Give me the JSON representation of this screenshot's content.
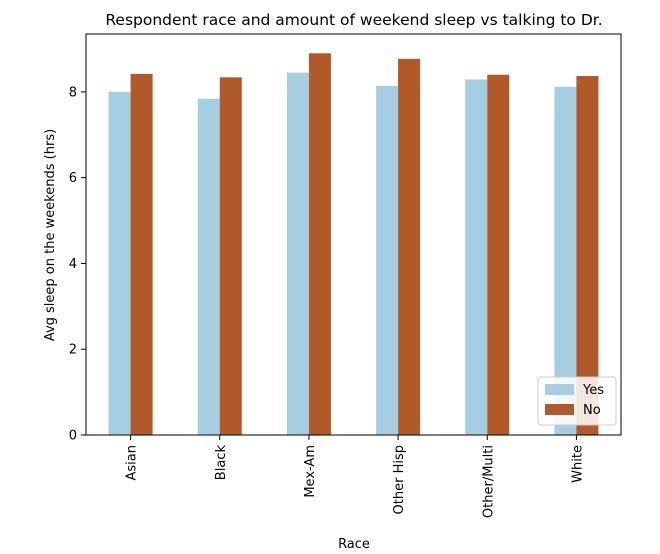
{
  "chart_data": {
    "type": "bar",
    "title": "Respondent race and amount of weekend sleep vs talking to Dr.",
    "xlabel": "Race",
    "ylabel": "Avg sleep on the weekends (hrs)",
    "categories": [
      "Asian",
      "Black",
      "Mex-Am",
      "Other Hisp",
      "Other/Multi",
      "White"
    ],
    "series": [
      {
        "name": "Yes",
        "color": "#a6cee3",
        "values": [
          8.0,
          7.84,
          8.45,
          8.14,
          8.29,
          8.12
        ]
      },
      {
        "name": "No",
        "color": "#b15928",
        "values": [
          8.42,
          8.34,
          8.9,
          8.77,
          8.4,
          8.37
        ]
      }
    ],
    "ylim": [
      0,
      9.35
    ],
    "yticks": [
      0,
      2,
      4,
      6,
      8
    ],
    "grid": false,
    "legend_position": "lower-right"
  }
}
